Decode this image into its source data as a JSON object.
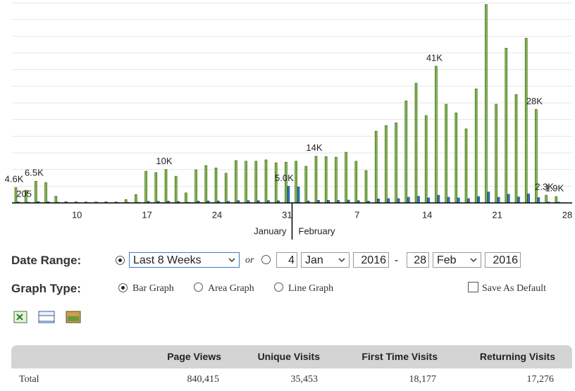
{
  "chart_data": {
    "type": "bar",
    "categories": [
      null,
      null,
      null,
      null,
      null,
      null,
      "10",
      null,
      null,
      null,
      null,
      null,
      null,
      "17",
      null,
      null,
      null,
      null,
      null,
      null,
      "24",
      null,
      null,
      null,
      null,
      null,
      null,
      "31",
      null,
      null,
      null,
      null,
      null,
      null,
      "7",
      null,
      null,
      null,
      null,
      null,
      null,
      "14",
      null,
      null,
      null,
      null,
      null,
      null,
      "21",
      null,
      null,
      null,
      null,
      null,
      null,
      "28"
    ],
    "month_labels": [
      "January",
      "February"
    ],
    "ylim": [
      0,
      60000
    ],
    "yticks": [
      0,
      5000,
      10000,
      15000,
      20000,
      25000,
      30000,
      35000,
      40000,
      45000,
      50000,
      55000,
      60000
    ],
    "grid": true,
    "series": [
      {
        "color": "#7dbb42",
        "values": [
          4600,
          3800,
          6500,
          6100,
          2000,
          400,
          350,
          300,
          300,
          350,
          300,
          1000,
          2500,
          9500,
          9100,
          10000,
          8000,
          3000,
          9900,
          11200,
          10500,
          8900,
          12700,
          12500,
          12500,
          12900,
          12000,
          12200,
          12500,
          11000,
          14000,
          13900,
          13700,
          15200,
          12500,
          9700,
          21500,
          23200,
          24000,
          30600,
          35900,
          26200,
          41000,
          29600,
          27000,
          22200,
          34200,
          59500,
          29600,
          46400,
          32500,
          49400,
          28000,
          2300,
          1900,
          0
        ],
        "value_labels": [
          "4.6K",
          null,
          "6.5K",
          null,
          null,
          null,
          null,
          null,
          null,
          null,
          null,
          null,
          null,
          null,
          null,
          "10K",
          null,
          null,
          null,
          null,
          null,
          null,
          null,
          null,
          null,
          null,
          null,
          null,
          null,
          null,
          "14K",
          null,
          null,
          null,
          null,
          null,
          null,
          null,
          null,
          null,
          null,
          null,
          "41K",
          null,
          null,
          null,
          null,
          null,
          null,
          null,
          null,
          null,
          "28K",
          "2.3K",
          "1.9K",
          null
        ]
      },
      {
        "color": "#2e75b6",
        "values": [
          300,
          205,
          400,
          350,
          200,
          100,
          100,
          100,
          100,
          100,
          100,
          150,
          200,
          500,
          500,
          550,
          450,
          200,
          550,
          600,
          600,
          500,
          700,
          700,
          700,
          700,
          650,
          5000,
          4800,
          600,
          800,
          800,
          750,
          850,
          700,
          550,
          1200,
          1300,
          1300,
          1700,
          2000,
          1500,
          2300,
          1700,
          1500,
          1300,
          1900,
          3300,
          1700,
          2600,
          1800,
          2700,
          1600,
          300,
          250,
          0
        ],
        "value_labels": [
          null,
          "205",
          null,
          null,
          null,
          null,
          null,
          null,
          null,
          null,
          null,
          null,
          null,
          null,
          null,
          null,
          null,
          null,
          null,
          null,
          null,
          null,
          null,
          null,
          null,
          null,
          null,
          "5.0K",
          null,
          null,
          null,
          null,
          null,
          null,
          null,
          null,
          null,
          null,
          null,
          null,
          null,
          null,
          null,
          null,
          null,
          null,
          null,
          null,
          null,
          null,
          null,
          null,
          null,
          null,
          null,
          null
        ]
      }
    ]
  },
  "form": {
    "date_range_label": "Date Range:",
    "preset": "Last 8 Weeks",
    "or": "or",
    "from_day": "4",
    "from_month": "Jan",
    "from_year": "2016",
    "dash": "-",
    "to_day": "28",
    "to_month": "Feb",
    "to_year": "2016",
    "graph_type_label": "Graph Type:",
    "graph_types": [
      "Bar Graph",
      "Area Graph",
      "Line Graph"
    ],
    "save_default": "Save As Default"
  },
  "table": {
    "header": [
      "Page Views",
      "Unique Visits",
      "First Time Visits",
      "Returning Visits"
    ],
    "rows": [
      [
        "Total",
        "840,415",
        "35,453",
        "18,177",
        "17,276"
      ]
    ]
  }
}
